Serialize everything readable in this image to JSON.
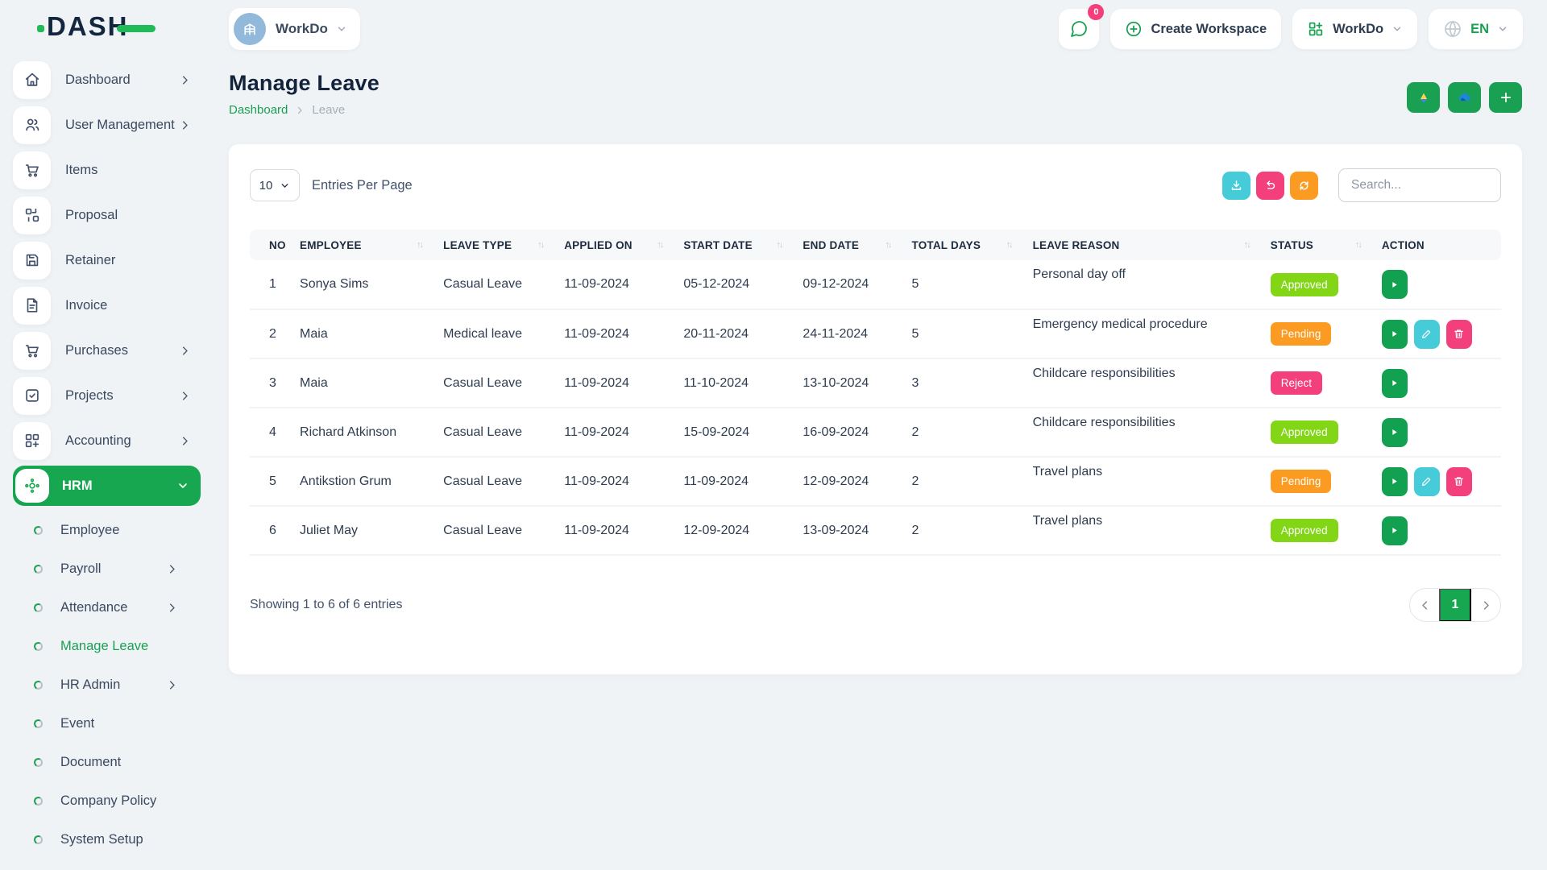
{
  "brand": {
    "logo_text": "DASH"
  },
  "topbar": {
    "workspace_label": "WorkDo",
    "messages_badge": "0",
    "create_workspace_label": "Create Workspace",
    "workdo_menu_label": "WorkDo",
    "language_code": "EN"
  },
  "sidebar": {
    "items": [
      {
        "label": "Dashboard",
        "icon": "home-icon",
        "chevron": "right"
      },
      {
        "label": "User Management",
        "icon": "users-icon",
        "chevron": "right"
      },
      {
        "label": "Items",
        "icon": "cart-icon",
        "chevron": ""
      },
      {
        "label": "Proposal",
        "icon": "proposal-icon",
        "chevron": ""
      },
      {
        "label": "Retainer",
        "icon": "retainer-icon",
        "chevron": ""
      },
      {
        "label": "Invoice",
        "icon": "invoice-icon",
        "chevron": ""
      },
      {
        "label": "Purchases",
        "icon": "cart-icon",
        "chevron": "right"
      },
      {
        "label": "Projects",
        "icon": "projects-icon",
        "chevron": "right"
      },
      {
        "label": "Accounting",
        "icon": "accounting-icon",
        "chevron": "right"
      },
      {
        "label": "HRM",
        "icon": "hrm-icon",
        "chevron": "down",
        "active": true
      }
    ],
    "hrm_submenu": [
      {
        "label": "Employee",
        "chevron": ""
      },
      {
        "label": "Payroll",
        "chevron": "right"
      },
      {
        "label": "Attendance",
        "chevron": "right"
      },
      {
        "label": "Manage Leave",
        "chevron": "",
        "active": true
      },
      {
        "label": "HR Admin",
        "chevron": "right"
      },
      {
        "label": "Event",
        "chevron": ""
      },
      {
        "label": "Document",
        "chevron": ""
      },
      {
        "label": "Company Policy",
        "chevron": ""
      },
      {
        "label": "System Setup",
        "chevron": ""
      }
    ]
  },
  "page": {
    "title": "Manage Leave",
    "breadcrumb_root": "Dashboard",
    "breadcrumb_current": "Leave"
  },
  "toolbar": {
    "entries_per_page_value": "10",
    "entries_per_page_label": "Entries Per Page",
    "search_placeholder": "Search..."
  },
  "table": {
    "columns": [
      "NO",
      "EMPLOYEE",
      "LEAVE TYPE",
      "APPLIED ON",
      "START DATE",
      "END DATE",
      "TOTAL DAYS",
      "LEAVE REASON",
      "STATUS",
      "ACTION"
    ],
    "rows": [
      {
        "no": "1",
        "employee": "Sonya Sims",
        "leave_type": "Casual Leave",
        "applied_on": "11-09-2024",
        "start_date": "05-12-2024",
        "end_date": "09-12-2024",
        "total_days": "5",
        "reason": "Personal day off",
        "status": "Approved",
        "actions": [
          "view"
        ]
      },
      {
        "no": "2",
        "employee": "Maia",
        "leave_type": "Medical leave",
        "applied_on": "11-09-2024",
        "start_date": "20-11-2024",
        "end_date": "24-11-2024",
        "total_days": "5",
        "reason": "Emergency medical procedure",
        "status": "Pending",
        "actions": [
          "view",
          "edit",
          "delete"
        ]
      },
      {
        "no": "3",
        "employee": "Maia",
        "leave_type": "Casual Leave",
        "applied_on": "11-09-2024",
        "start_date": "11-10-2024",
        "end_date": "13-10-2024",
        "total_days": "3",
        "reason": "Childcare responsibilities",
        "status": "Reject",
        "actions": [
          "view"
        ]
      },
      {
        "no": "4",
        "employee": "Richard Atkinson",
        "leave_type": "Casual Leave",
        "applied_on": "11-09-2024",
        "start_date": "15-09-2024",
        "end_date": "16-09-2024",
        "total_days": "2",
        "reason": "Childcare responsibilities",
        "status": "Approved",
        "actions": [
          "view"
        ]
      },
      {
        "no": "5",
        "employee": "Antikstion Grum",
        "leave_type": "Casual Leave",
        "applied_on": "11-09-2024",
        "start_date": "11-09-2024",
        "end_date": "12-09-2024",
        "total_days": "2",
        "reason": "Travel plans",
        "status": "Pending",
        "actions": [
          "view",
          "edit",
          "delete"
        ]
      },
      {
        "no": "6",
        "employee": "Juliet May",
        "leave_type": "Casual Leave",
        "applied_on": "11-09-2024",
        "start_date": "12-09-2024",
        "end_date": "13-09-2024",
        "total_days": "2",
        "reason": "Travel plans",
        "status": "Approved",
        "actions": [
          "view"
        ]
      }
    ],
    "footer": {
      "showing_text": "Showing 1 to 6 of 6 entries",
      "current_page": "1"
    }
  },
  "colors": {
    "primary_green": "#1aa053",
    "active_green": "#17a750",
    "badge_approved": "#82d616",
    "badge_pending": "#fb9b22",
    "badge_reject": "#f43f7d",
    "action_view": "#12a150",
    "action_edit": "#46ccd9",
    "action_delete": "#f43f7d",
    "toolbar_download": "#46ccd9",
    "toolbar_undo": "#f43f7d",
    "toolbar_refresh": "#fb9b22"
  }
}
